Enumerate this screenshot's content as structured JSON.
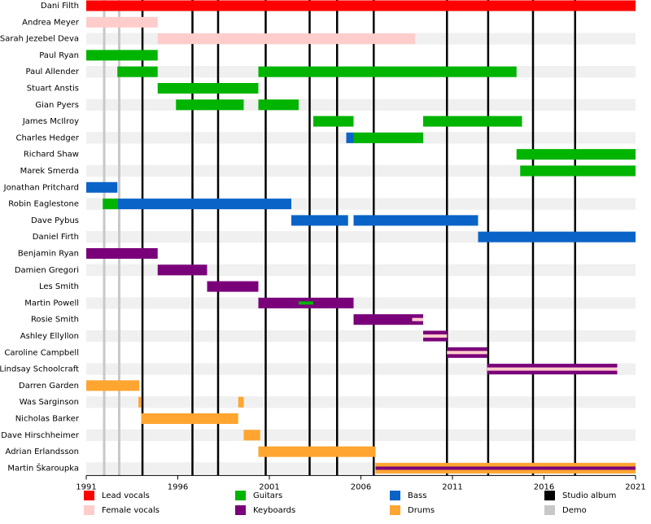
{
  "chart_data": {
    "type": "timeline",
    "xlim": [
      1991,
      2021
    ],
    "xticks": [
      1991,
      1996,
      2001,
      2006,
      2011,
      2016,
      2021
    ],
    "roles": [
      {
        "name": "Lead vocals",
        "color": "#ff0000"
      },
      {
        "name": "Female vocals",
        "color": "#ffcccc"
      },
      {
        "name": "Guitars",
        "color": "#00b400"
      },
      {
        "name": "Keyboards",
        "color": "#7a007a"
      },
      {
        "name": "Bass",
        "color": "#0a64c8"
      },
      {
        "name": "Drums",
        "color": "#ffa530"
      }
    ],
    "markers": [
      {
        "name": "Studio album",
        "color": "#000000",
        "years": [
          1994.07,
          1996.8,
          1998.2,
          2000.8,
          2003.2,
          2004.7,
          2006.7,
          2010.7,
          2012.95,
          2015.4,
          2017.7
        ]
      },
      {
        "name": "Demo",
        "color": "#c8c8c8",
        "years": [
          1991.98,
          1992.8
        ]
      }
    ],
    "members": [
      {
        "name": "Dani Filth",
        "segments": [
          {
            "start": 1991,
            "end": 2021,
            "role": 0
          }
        ]
      },
      {
        "name": "Andrea Meyer",
        "segments": [
          {
            "start": 1991,
            "end": 1994.9,
            "role": 1
          }
        ]
      },
      {
        "name": "Sarah Jezebel Deva",
        "segments": [
          {
            "start": 1994.9,
            "end": 2008.96,
            "role": 1
          }
        ]
      },
      {
        "name": "Paul Ryan",
        "segments": [
          {
            "start": 1991,
            "end": 1994.9,
            "role": 2
          }
        ]
      },
      {
        "name": "Paul Allender",
        "segments": [
          {
            "start": 1992.7,
            "end": 1994.9,
            "role": 2
          },
          {
            "start": 2000.4,
            "end": 2014.5,
            "role": 2
          }
        ]
      },
      {
        "name": "Stuart Anstis",
        "segments": [
          {
            "start": 1994.9,
            "end": 2000.4,
            "role": 2
          }
        ]
      },
      {
        "name": "Gian Pyers",
        "segments": [
          {
            "start": 1995.9,
            "end": 1999.6,
            "role": 2
          },
          {
            "start": 2000.4,
            "end": 2002.6,
            "role": 2
          }
        ]
      },
      {
        "name": "James McIlroy",
        "segments": [
          {
            "start": 2003.4,
            "end": 2005.6,
            "role": 2
          },
          {
            "start": 2009.4,
            "end": 2014.8,
            "role": 2
          }
        ]
      },
      {
        "name": "Charles Hedger",
        "segments": [
          {
            "start": 2005.2,
            "end": 2005.6,
            "role": 4
          },
          {
            "start": 2005.6,
            "end": 2009.4,
            "role": 2
          }
        ]
      },
      {
        "name": "Richard Shaw",
        "segments": [
          {
            "start": 2014.5,
            "end": 2021,
            "role": 2
          }
        ]
      },
      {
        "name": "Marek Smerda",
        "segments": [
          {
            "start": 2014.7,
            "end": 2021,
            "role": 2
          }
        ]
      },
      {
        "name": "Jonathan Pritchard",
        "segments": [
          {
            "start": 1991,
            "end": 1992.7,
            "role": 4
          }
        ]
      },
      {
        "name": "Robin Eaglestone",
        "segments": [
          {
            "start": 1991.9,
            "end": 1992.7,
            "role": 2
          },
          {
            "start": 1992.7,
            "end": 2002.2,
            "role": 4
          }
        ]
      },
      {
        "name": "Dave Pybus",
        "segments": [
          {
            "start": 2002.2,
            "end": 2005.3,
            "role": 4
          },
          {
            "start": 2005.6,
            "end": 2012.4,
            "role": 4
          }
        ]
      },
      {
        "name": "Daniel Firth",
        "segments": [
          {
            "start": 2012.4,
            "end": 2021,
            "role": 4
          }
        ]
      },
      {
        "name": "Benjamin Ryan",
        "segments": [
          {
            "start": 1991,
            "end": 1994.9,
            "role": 3
          }
        ]
      },
      {
        "name": "Damien Gregori",
        "segments": [
          {
            "start": 1994.9,
            "end": 1997.6,
            "role": 3
          }
        ]
      },
      {
        "name": "Les Smith",
        "segments": [
          {
            "start": 1997.6,
            "end": 2000.4,
            "role": 3
          }
        ]
      },
      {
        "name": "Martin Powell",
        "segments": [
          {
            "start": 2000.4,
            "end": 2005.6,
            "role": 3
          },
          {
            "start": 2002.6,
            "end": 2003.4,
            "role": 2,
            "thin": true
          }
        ]
      },
      {
        "name": "Rosie Smith",
        "segments": [
          {
            "start": 2005.6,
            "end": 2009.4,
            "role": 3
          },
          {
            "start": 2008.8,
            "end": 2009.4,
            "role": 1,
            "thin": true
          }
        ]
      },
      {
        "name": "Ashley Ellyllon",
        "segments": [
          {
            "start": 2009.4,
            "end": 2010.7,
            "role": 3
          },
          {
            "start": 2009.4,
            "end": 2010.7,
            "role": 1,
            "thin": true
          }
        ]
      },
      {
        "name": "Caroline Campbell",
        "segments": [
          {
            "start": 2010.7,
            "end": 2012.9,
            "role": 3
          },
          {
            "start": 2010.7,
            "end": 2012.9,
            "role": 1,
            "thin": true
          }
        ]
      },
      {
        "name": "Lindsay Schoolcraft",
        "segments": [
          {
            "start": 2012.9,
            "end": 2020,
            "role": 3
          },
          {
            "start": 2012.9,
            "end": 2020,
            "role": 1,
            "thin": true
          }
        ]
      },
      {
        "name": "Darren Garden",
        "segments": [
          {
            "start": 1991,
            "end": 1993.9,
            "role": 5
          }
        ]
      },
      {
        "name": "Was Sarginson",
        "segments": [
          {
            "start": 1993.85,
            "end": 1994.0,
            "role": 5
          },
          {
            "start": 1999.3,
            "end": 1999.6,
            "role": 5
          }
        ]
      },
      {
        "name": "Nicholas Barker",
        "segments": [
          {
            "start": 1994.0,
            "end": 1999.3,
            "role": 5
          }
        ]
      },
      {
        "name": "Dave Hirschheimer",
        "segments": [
          {
            "start": 1999.6,
            "end": 2000.5,
            "role": 5
          }
        ]
      },
      {
        "name": "Adrian Erlandsson",
        "segments": [
          {
            "start": 2000.4,
            "end": 2006.8,
            "role": 5
          }
        ]
      },
      {
        "name": "Martin Škaroupka",
        "segments": [
          {
            "start": 2006.8,
            "end": 2021,
            "role": 5
          },
          {
            "start": 2006.8,
            "end": 2021,
            "role": 3,
            "thin": true
          }
        ]
      }
    ]
  }
}
